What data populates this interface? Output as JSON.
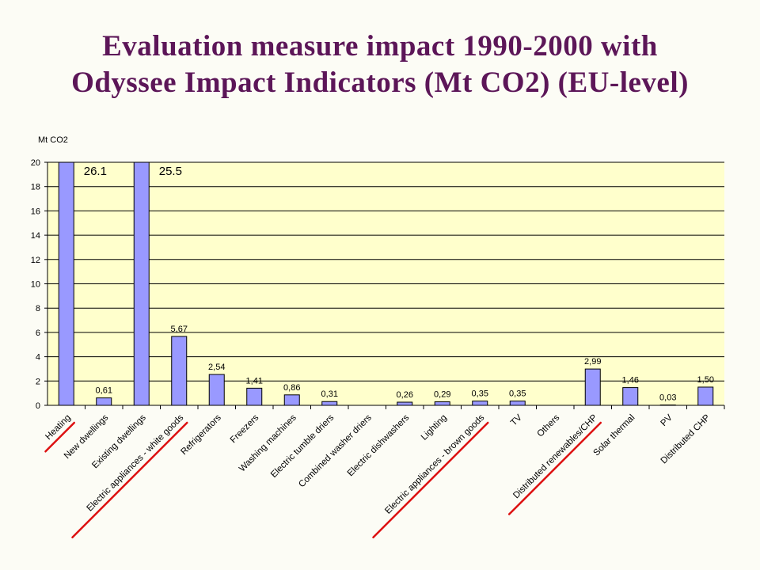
{
  "slide": {
    "title_line1": "Evaluation measure impact 1990-2000  with",
    "title_line2": "Odyssee Impact Indicators (Mt CO2) (EU-level)"
  },
  "chart_data": {
    "type": "bar",
    "ylabel": "Mt CO2",
    "ylim": [
      0,
      20
    ],
    "yticks": [
      0,
      2,
      4,
      6,
      8,
      10,
      12,
      14,
      16,
      18,
      20
    ],
    "grid": true,
    "legend": "none",
    "categories": [
      "Heating",
      "New dwellings",
      "Existing dwellings",
      "Electric appliances - white goods",
      "Refrigerators",
      "Freezers",
      "Washing machines",
      "Electric tumble driers",
      "Combined washer driers",
      "Electric dishwashers",
      "Lighting",
      "Electric appliances - brown goods",
      "TV",
      "Others",
      "Distributed renewables/CHP",
      "Solar thermal",
      "PV",
      "Distributed CHP"
    ],
    "values": [
      26.1,
      0.61,
      25.5,
      5.67,
      2.54,
      1.41,
      0.86,
      0.31,
      null,
      0.26,
      0.29,
      0.35,
      0.35,
      null,
      2.99,
      1.46,
      0.03,
      1.5
    ],
    "data_labels": [
      "26.1",
      "0,61",
      "25.5",
      "5,67",
      "2,54",
      "1,41",
      "0,86",
      "0,31",
      "",
      "0,26",
      "0,29",
      "0,35",
      "0,35",
      "",
      "2,99",
      "1,46",
      "0,03",
      "1,50"
    ],
    "underlined_categories": [
      "Heating",
      "Electric appliances - white goods",
      "Electric appliances - brown goods",
      "Distributed renewables/CHP"
    ],
    "colors": {
      "bar_fill": "#9999ff",
      "bar_stroke": "#000000",
      "plot_background": "#ffffcc",
      "gridline": "#000000",
      "underline": "#dd1111",
      "title": "#5c1658"
    }
  }
}
